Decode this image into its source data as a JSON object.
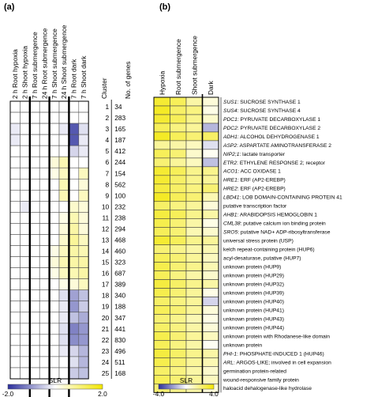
{
  "chart_data": [
    {
      "type": "heatmap",
      "panel_label": "(a)",
      "columns": [
        "2 h Root hypoxia",
        "2 h Shoot hypoxia",
        "7 h Root submergence",
        "24 h Root submergence",
        "7 h Shoot submergence",
        "24 h Shoot submergence",
        "7 h Root dark",
        "7 h Shoot dark"
      ],
      "cluster_header": "Cluster",
      "genes_header": "No. of genes",
      "clusters": [
        1,
        2,
        3,
        4,
        5,
        6,
        7,
        8,
        9,
        10,
        11,
        12,
        13,
        14,
        15,
        16,
        17,
        18,
        19,
        20,
        21,
        22,
        23,
        24,
        25
      ],
      "num_genes": [
        34,
        283,
        165,
        187,
        412,
        244,
        154,
        562,
        100,
        232,
        238,
        294,
        468,
        460,
        323,
        687,
        389,
        340,
        188,
        347,
        441,
        830,
        496,
        511,
        168
      ],
      "values": [
        [
          0.0,
          0.0,
          0.0,
          0.0,
          0.0,
          0.0,
          0.0,
          0.0
        ],
        [
          0.0,
          0.0,
          0.0,
          0.0,
          0.0,
          0.0,
          0.0,
          0.0
        ],
        [
          -0.2,
          0.0,
          0.0,
          0.0,
          0.0,
          -0.2,
          -1.6,
          -0.3
        ],
        [
          -0.2,
          0.0,
          0.0,
          0.0,
          0.0,
          0.0,
          -1.6,
          -0.2
        ],
        [
          0.0,
          0.0,
          0.0,
          0.0,
          0.0,
          0.0,
          -0.4,
          -0.2
        ],
        [
          0.0,
          0.0,
          0.0,
          0.0,
          0.3,
          0.6,
          0.0,
          0.0
        ],
        [
          0.0,
          0.0,
          0.0,
          0.0,
          0.2,
          0.5,
          0.0,
          0.5
        ],
        [
          0.0,
          0.0,
          0.0,
          0.0,
          0.0,
          0.6,
          0.0,
          0.3
        ],
        [
          0.0,
          0.0,
          0.0,
          0.0,
          0.0,
          0.6,
          0.0,
          0.5
        ],
        [
          0.0,
          -0.2,
          0.0,
          0.0,
          0.0,
          0.0,
          0.4,
          0.3
        ],
        [
          0.0,
          0.0,
          0.0,
          0.0,
          0.0,
          0.2,
          0.6,
          0.3
        ],
        [
          0.0,
          0.0,
          0.0,
          0.0,
          0.0,
          0.3,
          0.7,
          0.3
        ],
        [
          0.0,
          0.0,
          0.0,
          0.0,
          0.0,
          0.4,
          0.8,
          0.5
        ],
        [
          0.0,
          0.0,
          0.0,
          0.0,
          0.2,
          0.5,
          0.7,
          0.6
        ],
        [
          0.0,
          0.0,
          0.0,
          0.0,
          0.3,
          0.6,
          0.7,
          0.7
        ],
        [
          0.0,
          0.0,
          0.0,
          0.0,
          0.2,
          0.5,
          0.6,
          0.7
        ],
        [
          0.0,
          0.0,
          0.0,
          0.0,
          0.0,
          0.2,
          0.3,
          0.5
        ],
        [
          0.0,
          0.0,
          0.0,
          0.0,
          0.0,
          -0.3,
          -0.9,
          -0.6
        ],
        [
          0.0,
          0.0,
          0.0,
          0.0,
          0.0,
          -0.2,
          -1.0,
          -0.5
        ],
        [
          0.0,
          0.0,
          0.0,
          0.0,
          0.0,
          -0.2,
          -0.6,
          -0.8
        ],
        [
          0.0,
          0.0,
          0.0,
          0.0,
          0.0,
          -0.3,
          -1.2,
          -1.0
        ],
        [
          0.0,
          0.0,
          0.0,
          0.0,
          0.0,
          -0.3,
          -1.1,
          -1.0
        ],
        [
          0.0,
          0.0,
          0.0,
          0.0,
          0.0,
          -0.2,
          -0.4,
          -0.7
        ],
        [
          0.0,
          0.0,
          0.0,
          0.0,
          0.0,
          0.0,
          -0.3,
          -0.7
        ],
        [
          0.0,
          0.0,
          0.0,
          0.0,
          0.0,
          0.0,
          -0.5,
          -0.6
        ]
      ],
      "colorbar": {
        "label": "SLR",
        "min": -2.0,
        "max": 2.0,
        "min_label": "-2.0",
        "max_label": "2.0"
      },
      "colors": {
        "low": "#2b2f9c",
        "mid": "#ffffff",
        "high": "#f2e600"
      }
    },
    {
      "type": "heatmap",
      "panel_label": "(b)",
      "columns": [
        "Hypoxia",
        "Root submergence",
        "Shoot submergence",
        "Dark"
      ],
      "rows": [
        {
          "italic": "SUS1",
          "text": ": SUCROSE SYNTHASE 1"
        },
        {
          "italic": "SUS4",
          "text": ": SUCROSE SYNTHASE 4"
        },
        {
          "italic": "PDC1",
          "text": ": PYRUVATE DECARBOXYLASE 1"
        },
        {
          "italic": "PDC2",
          "text": ": PYRUVATE DECARBOXYLASE 2"
        },
        {
          "italic": "ADH1",
          "text": ": ALCOHOL DEHYDROGENASE 1"
        },
        {
          "italic": "ASP2",
          "text": ": ASPARTATE AMINOTRANSFERASE 2"
        },
        {
          "italic": "NIP2;1",
          "text": ": lactate transporter"
        },
        {
          "italic": "ETR2",
          "text": ": ETHYLENE RESPONSE 2; receptor"
        },
        {
          "italic": "ACO1",
          "text": ": ACC OXIDASE 1"
        },
        {
          "italic": "HRE1",
          "text": ": ERF (AP2-EREBP)"
        },
        {
          "italic": "HRE2",
          "text": ": ERF (AP2-EREBP)"
        },
        {
          "italic": "LBD41",
          "text": ": LOB DOMAIN-CONTAINING PROTEIN 41"
        },
        {
          "italic": "",
          "text": "putative transcription factor"
        },
        {
          "italic": "AHB1",
          "text": ": ARABIDOPSIS HEMOGLOBIN 1"
        },
        {
          "italic": "CML38",
          "text": ": putative calcium ion binding protein"
        },
        {
          "italic": "SRO5",
          "text": ": putative NAD+ ADP-ribosyltransferase"
        },
        {
          "italic": "",
          "text": "universal stress protein (USP)"
        },
        {
          "italic": "",
          "text": "kelch repeat-containing protein (HUP6)"
        },
        {
          "italic": "",
          "text": "acyl-desaturase, putative (HUP7)"
        },
        {
          "italic": "",
          "text": "unknown protein (HUP9)"
        },
        {
          "italic": "",
          "text": "unknown protein (HUP29)"
        },
        {
          "italic": "",
          "text": "unknown protein (HUP32)"
        },
        {
          "italic": "",
          "text": "unknown protein (HUP39)"
        },
        {
          "italic": "",
          "text": "unknown protein (HUP40)"
        },
        {
          "italic": "",
          "text": "unknown protein (HUP41)"
        },
        {
          "italic": "",
          "text": "unknown protein (HUP43)"
        },
        {
          "italic": "",
          "text": "unknown protein (HUP44)"
        },
        {
          "italic": "",
          "text": "unknown protein with Rhodanese-like domain"
        },
        {
          "italic": "",
          "text": "unknown protein"
        },
        {
          "italic": "PHI-1",
          "text": ": PHOSPHATE-INDUCED 1 (HUP46)"
        },
        {
          "italic": "ARL",
          "text": ": ARGOS-LIKE; involved in cell expansion"
        },
        {
          "italic": "",
          "text": "germination protein-related"
        },
        {
          "italic": "",
          "text": "wound-responsive family protein"
        },
        {
          "italic": "",
          "text": "haloacid dehalogenase-like hydrolase"
        }
      ],
      "values": [
        [
          3.2,
          2.6,
          1.4,
          0.6
        ],
        [
          3.4,
          2.4,
          2.0,
          0.4
        ],
        [
          3.2,
          2.6,
          1.8,
          0.8
        ],
        [
          2.6,
          2.0,
          1.6,
          -1.4
        ],
        [
          3.4,
          2.6,
          2.2,
          2.4
        ],
        [
          1.6,
          1.4,
          1.0,
          -0.6
        ],
        [
          2.6,
          2.2,
          0.8,
          0.2
        ],
        [
          2.2,
          1.6,
          1.0,
          -1.2
        ],
        [
          3.2,
          2.6,
          1.8,
          1.8
        ],
        [
          3.2,
          2.4,
          1.8,
          1.6
        ],
        [
          3.0,
          2.4,
          2.0,
          2.2
        ],
        [
          3.4,
          2.6,
          2.2,
          1.2
        ],
        [
          2.4,
          2.0,
          1.6,
          0.6
        ],
        [
          3.0,
          2.6,
          1.8,
          1.4
        ],
        [
          2.8,
          2.2,
          1.4,
          0.4
        ],
        [
          2.6,
          2.2,
          1.2,
          0.8
        ],
        [
          3.2,
          2.6,
          1.8,
          1.6
        ],
        [
          2.2,
          1.8,
          1.4,
          1.2
        ],
        [
          2.6,
          2.2,
          1.6,
          1.0
        ],
        [
          2.8,
          2.2,
          1.8,
          1.2
        ],
        [
          2.6,
          2.0,
          1.4,
          0.8
        ],
        [
          3.0,
          2.4,
          1.8,
          1.4
        ],
        [
          2.8,
          2.2,
          1.6,
          0.4
        ],
        [
          2.4,
          2.0,
          1.6,
          -0.8
        ],
        [
          2.6,
          2.2,
          1.6,
          0.6
        ],
        [
          2.2,
          1.8,
          1.2,
          0.4
        ],
        [
          2.4,
          2.0,
          1.4,
          0.6
        ],
        [
          2.8,
          2.2,
          1.6,
          1.0
        ],
        [
          2.6,
          2.0,
          1.4,
          0.2
        ],
        [
          3.0,
          2.4,
          1.8,
          1.4
        ],
        [
          2.8,
          2.2,
          1.6,
          1.2
        ],
        [
          2.4,
          2.0,
          1.4,
          0.8
        ],
        [
          2.6,
          2.2,
          1.6,
          1.0
        ],
        [
          2.2,
          1.8,
          1.4,
          0.6
        ]
      ],
      "colorbar": {
        "label": "SLR",
        "min": -4.0,
        "max": 4.0,
        "min_label": "-4.0",
        "max_label": "4.0"
      },
      "colors": {
        "low": "#2b2f9c",
        "mid": "#ffffff",
        "high": "#f2e600"
      }
    }
  ]
}
